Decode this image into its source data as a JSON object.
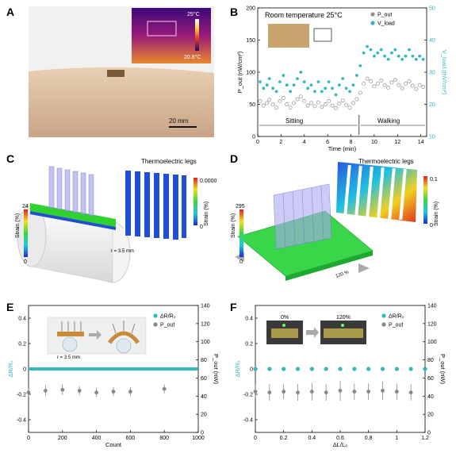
{
  "panels": {
    "A": {
      "letter": "A",
      "thermal_max": "25°C",
      "thermal_min": "20.8°C",
      "scale_bar": "20 mm"
    },
    "B": {
      "letter": "B",
      "annotation": "Room temperature 25°C",
      "phase_sitting": "Sitting",
      "phase_walking": "Walking"
    },
    "C": {
      "letter": "C",
      "legs_title": "Thermoelectric legs",
      "strain_max": "24",
      "strain_min": "0",
      "strain_label": "Strain (%)",
      "legs_strain_max": "0.0000",
      "legs_strain_min": "0",
      "radius": "r = 3.5 mm"
    },
    "D": {
      "letter": "D",
      "legs_title": "Thermoelectric legs",
      "strain_max": "295",
      "strain_min": "0",
      "strain_label": "Strain (%)",
      "legs_strain_max": "0.1",
      "legs_strain_min": "0",
      "stretch": "120 %"
    },
    "E": {
      "letter": "E",
      "inset_radius": "r = 3.5 mm"
    },
    "F": {
      "letter": "F",
      "inset_left": "0%",
      "inset_right": "120%"
    }
  },
  "chart_data": [
    {
      "panel": "B",
      "type": "scatter",
      "xlabel": "Time (min)",
      "ylabel": "P_out (nW/cm²)",
      "y2label": "V_load (mV/cm²)",
      "xlim": [
        0,
        14.5
      ],
      "ylim": [
        0,
        200
      ],
      "y2lim": [
        10,
        50
      ],
      "xticks": [
        0,
        2,
        4,
        6,
        8,
        10,
        12,
        14
      ],
      "yticks": [
        0,
        50,
        100,
        150,
        200
      ],
      "y2ticks": [
        10,
        20,
        30,
        40,
        50
      ],
      "series": [
        {
          "name": "P_out",
          "color": "#909090",
          "points": [
            [
              0.2,
              55
            ],
            [
              0.5,
              48
            ],
            [
              0.8,
              52
            ],
            [
              1.0,
              57
            ],
            [
              1.3,
              50
            ],
            [
              1.6,
              45
            ],
            [
              1.9,
              55
            ],
            [
              2.2,
              60
            ],
            [
              2.5,
              50
            ],
            [
              2.8,
              45
            ],
            [
              3.1,
              52
            ],
            [
              3.4,
              58
            ],
            [
              3.7,
              62
            ],
            [
              4.0,
              55
            ],
            [
              4.3,
              48
            ],
            [
              4.6,
              52
            ],
            [
              4.9,
              47
            ],
            [
              5.2,
              53
            ],
            [
              5.5,
              46
            ],
            [
              5.8,
              50
            ],
            [
              6.1,
              55
            ],
            [
              6.4,
              48
            ],
            [
              6.7,
              44
            ],
            [
              7.0,
              51
            ],
            [
              7.3,
              56
            ],
            [
              7.6,
              49
            ],
            [
              7.9,
              45
            ],
            [
              8.2,
              52
            ],
            [
              8.5,
              58
            ],
            [
              8.8,
              68
            ],
            [
              9.1,
              82
            ],
            [
              9.4,
              90
            ],
            [
              9.7,
              86
            ],
            [
              10.0,
              78
            ],
            [
              10.3,
              82
            ],
            [
              10.6,
              87
            ],
            [
              10.9,
              80
            ],
            [
              11.2,
              76
            ],
            [
              11.5,
              84
            ],
            [
              11.8,
              88
            ],
            [
              12.1,
              80
            ],
            [
              12.4,
              75
            ],
            [
              12.7,
              82
            ],
            [
              13.0,
              86
            ],
            [
              13.3,
              79
            ],
            [
              13.6,
              74
            ],
            [
              13.9,
              80
            ],
            [
              14.2,
              77
            ]
          ]
        },
        {
          "name": "V_load",
          "color": "#34b7bd",
          "points": [
            [
              0.2,
              27
            ],
            [
              0.5,
              25
            ],
            [
              0.8,
              26
            ],
            [
              1.0,
              28
            ],
            [
              1.3,
              25
            ],
            [
              1.6,
              24
            ],
            [
              1.9,
              27
            ],
            [
              2.2,
              29
            ],
            [
              2.5,
              26
            ],
            [
              2.8,
              24
            ],
            [
              3.1,
              26
            ],
            [
              3.4,
              28
            ],
            [
              3.7,
              30
            ],
            [
              4.0,
              27
            ],
            [
              4.3,
              25
            ],
            [
              4.6,
              26
            ],
            [
              4.9,
              24
            ],
            [
              5.2,
              27
            ],
            [
              5.5,
              24
            ],
            [
              5.8,
              25
            ],
            [
              6.1,
              27
            ],
            [
              6.4,
              25
            ],
            [
              6.7,
              23
            ],
            [
              7.0,
              26
            ],
            [
              7.3,
              28
            ],
            [
              7.6,
              25
            ],
            [
              7.9,
              24
            ],
            [
              8.2,
              26
            ],
            [
              8.5,
              29
            ],
            [
              8.8,
              32
            ],
            [
              9.1,
              36
            ],
            [
              9.4,
              38
            ],
            [
              9.7,
              37
            ],
            [
              10.0,
              35
            ],
            [
              10.3,
              36
            ],
            [
              10.6,
              37
            ],
            [
              10.9,
              35
            ],
            [
              11.2,
              34
            ],
            [
              11.5,
              36
            ],
            [
              11.8,
              37
            ],
            [
              12.1,
              35
            ],
            [
              12.4,
              34
            ],
            [
              12.7,
              35
            ],
            [
              13.0,
              37
            ],
            [
              13.3,
              35
            ],
            [
              13.6,
              34
            ],
            [
              13.9,
              35
            ],
            [
              14.2,
              34
            ]
          ]
        }
      ],
      "legend": "top-right"
    },
    {
      "panel": "E",
      "type": "scatter",
      "xlabel": "Count",
      "ylabel": "ΔR/R₀",
      "y2label": "P_out (nW)",
      "xlim": [
        0,
        1000
      ],
      "ylim": [
        -0.5,
        0.5
      ],
      "y2lim": [
        0,
        140
      ],
      "xticks": [
        0,
        200,
        400,
        600,
        800,
        1000
      ],
      "yticks": [
        -0.4,
        -0.2,
        0.0,
        0.2,
        0.4
      ],
      "y2ticks": [
        0,
        20,
        40,
        60,
        80,
        100,
        120,
        140
      ],
      "series": [
        {
          "name": "ΔR/R₀",
          "color": "#34b7bd",
          "line_y": 0.0
        },
        {
          "name": "P_out",
          "color": "#888888",
          "points": [
            [
              0,
              44
            ],
            [
              100,
              46
            ],
            [
              200,
              47
            ],
            [
              300,
              46
            ],
            [
              400,
              44
            ],
            [
              500,
              45
            ],
            [
              600,
              45
            ],
            [
              800,
              48
            ]
          ],
          "errors": [
            5,
            6,
            6,
            5,
            5,
            5,
            5,
            5
          ]
        }
      ],
      "legend": "top-right"
    },
    {
      "panel": "F",
      "type": "scatter",
      "xlabel": "ΔL/L₀",
      "ylabel": "ΔR/R₀",
      "y2label": "P_out (nW)",
      "xlim": [
        0,
        1.2
      ],
      "ylim": [
        -0.5,
        0.5
      ],
      "y2lim": [
        0,
        140
      ],
      "xticks": [
        0.0,
        0.2,
        0.4,
        0.6,
        0.8,
        1.0,
        1.2
      ],
      "yticks": [
        -0.4,
        -0.2,
        0.0,
        0.2,
        0.4
      ],
      "y2ticks": [
        0,
        20,
        40,
        60,
        80,
        100,
        120,
        140
      ],
      "series": [
        {
          "name": "ΔR/R₀",
          "color": "#34b7bd",
          "x": [
            0.0,
            0.1,
            0.2,
            0.3,
            0.4,
            0.5,
            0.6,
            0.7,
            0.8,
            0.9,
            1.0,
            1.1,
            1.2
          ],
          "y": [
            0,
            0,
            0,
            0,
            0,
            0,
            0,
            0,
            0,
            0,
            0,
            0,
            0
          ]
        },
        {
          "name": "P_out",
          "color": "#888888",
          "points": [
            [
              0.0,
              45
            ],
            [
              0.1,
              44
            ],
            [
              0.2,
              45
            ],
            [
              0.3,
              44
            ],
            [
              0.4,
              45
            ],
            [
              0.5,
              44
            ],
            [
              0.6,
              46
            ],
            [
              0.7,
              45
            ],
            [
              0.8,
              45
            ],
            [
              0.9,
              46
            ],
            [
              1.0,
              45
            ],
            [
              1.1,
              44
            ]
          ],
          "errors": [
            8,
            9,
            8,
            9,
            10,
            9,
            11,
            9,
            9,
            10,
            9,
            9
          ]
        }
      ],
      "legend": "top-right"
    }
  ]
}
